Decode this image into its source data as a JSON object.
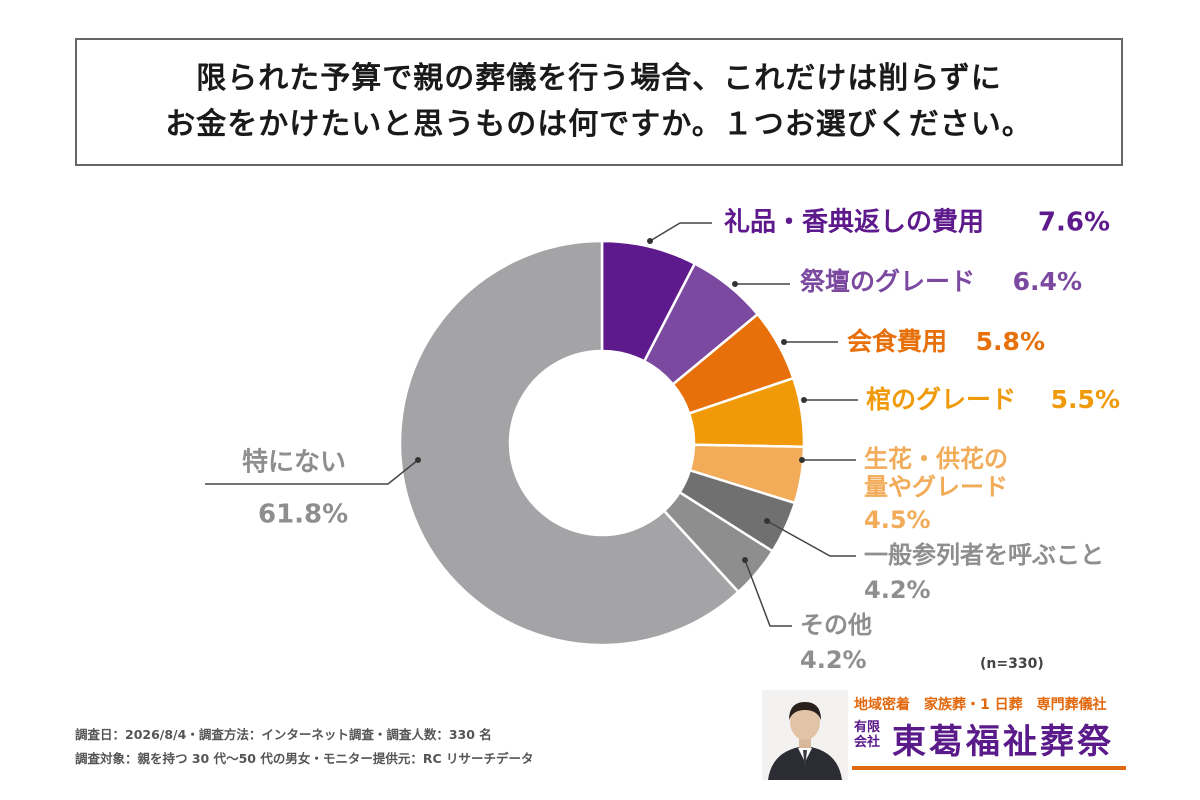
{
  "title": {
    "line1": "限られた予算で親の葬儀を行う場合、これだけは削らずに",
    "line2": "お金をかけたいと思うものは何ですか。１つお選びください。"
  },
  "chart_data": {
    "type": "pie",
    "style": "donut",
    "start_angle_deg": 0,
    "direction": "clockwise",
    "slices": [
      {
        "label": [
          "礼品・香典返しの費用"
        ],
        "value": 7.6,
        "value_label": "7.6%",
        "color": "#5e1a8c"
      },
      {
        "label": [
          "祭壇のグレード"
        ],
        "value": 6.4,
        "value_label": "6.4%",
        "color": "#7b4aa0"
      },
      {
        "label": [
          "会食費用"
        ],
        "value": 5.8,
        "value_label": "5.8%",
        "color": "#e8700a"
      },
      {
        "label": [
          "棺のグレード"
        ],
        "value": 5.5,
        "value_label": "5.5%",
        "color": "#f09a0a"
      },
      {
        "label": [
          "生花・供花の",
          "量やグレード"
        ],
        "value": 4.5,
        "value_label": "4.5%",
        "color": "#f2ab58"
      },
      {
        "label": [
          "一般参列者を呼ぶこと"
        ],
        "value": 4.2,
        "value_label": "4.2%",
        "color": "#707070"
      },
      {
        "label": [
          "その他"
        ],
        "value": 4.2,
        "value_label": "4.2%",
        "color": "#8e8e8e"
      },
      {
        "label": [
          "特にない"
        ],
        "value": 61.8,
        "value_label": "61.8%",
        "color": "#a4a3a6"
      }
    ],
    "label_colors": [
      "#5e1a8c",
      "#7b4aa0",
      "#e8700a",
      "#f09a0a",
      "#f2ab58",
      "#8e8e8e",
      "#8e8e8e",
      "#8e8e8e"
    ]
  },
  "sample": "(n=330)",
  "footnotes": {
    "line1": "調査日：2026/8/4・調査方法：インターネット調査・調査人数：330 名",
    "line2": "調査対象：親を持つ 30 代〜50 代の男女・モニター提供元：RC リサーチデータ"
  },
  "brand": {
    "tagline": "地域密着　家族葬・1 日葬　専門葬儀社",
    "corp_type": [
      "有限",
      "会社"
    ],
    "company": "東葛福祉葬祭",
    "colors": {
      "accent": "#e2680e",
      "primary": "#5a1a8a"
    }
  }
}
